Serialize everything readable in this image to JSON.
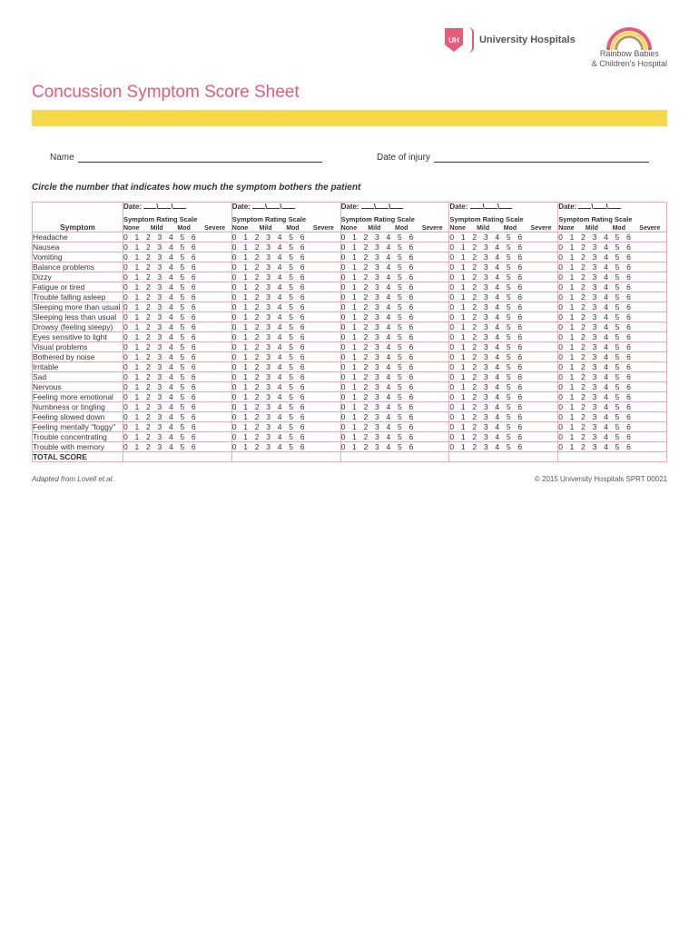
{
  "logos": {
    "uh_badge": "UH",
    "uh_name": "University Hospitals",
    "rainbow_line1": "Rainbow Babies",
    "rainbow_line2": "& Children's Hospital"
  },
  "title": "Concussion Symptom Score Sheet",
  "fields": {
    "name_label": "Name",
    "date_injury_label": "Date of injury"
  },
  "instruction": "Circle the number that indicates how much the symptom bothers the patient",
  "table": {
    "symptom_header": "Symptom",
    "date_label": "Date:",
    "scale_title": "Symptom Rating Scale",
    "scale_labels": [
      "None",
      "Mild",
      "Mod",
      "Severe"
    ],
    "rating_numbers": "0 1 2 3 4 5 6",
    "num_date_columns": 5,
    "symptoms": [
      "Headache",
      "Nausea",
      "Vomiting",
      "Balance problems",
      "Dizzy",
      "Fatigue or tired",
      "Trouble falling asleep",
      "Sleeping more than usual",
      "Sleeping less than usual",
      "Drowsy (feeling sleepy)",
      "Eyes sensitive to light",
      "Visual problems",
      "Bothered by noise",
      "Irritable",
      "Sad",
      "Nervous",
      "Feeling more emotional",
      "Numbness or tingling",
      "Feeling slowed down",
      "Feeling mentally \"foggy\"",
      "Trouble concentrating",
      "Trouble with memory"
    ],
    "total_label": "TOTAL SCORE"
  },
  "footer": {
    "left": "Adapted from Lovell et.al.",
    "right": "© 2015 University Hospitals   SPRT 00021"
  },
  "colors": {
    "accent_pink": "#e85a7a",
    "light_pink_border": "#f2a6b8",
    "yellow_bar": "#f5d949",
    "text": "#333333",
    "muted": "#555555",
    "page_bg": "#ffffff"
  }
}
